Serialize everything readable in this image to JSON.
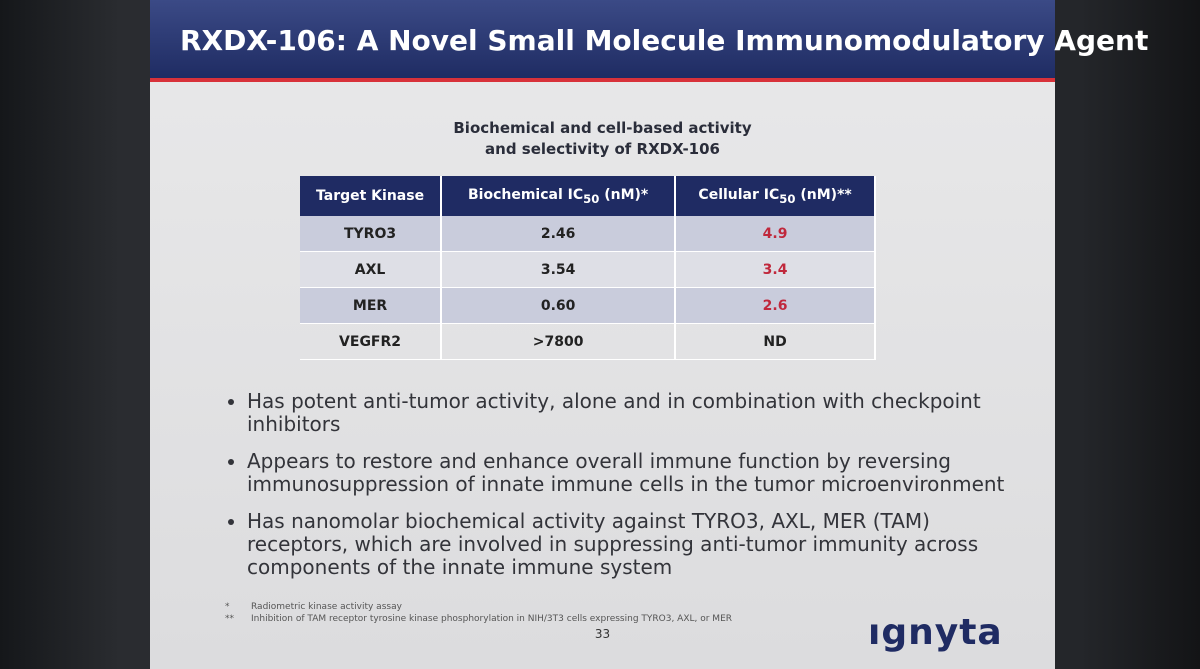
{
  "header": {
    "title": "RXDX-106: A Novel Small Molecule Immunomodulatory Agent"
  },
  "table": {
    "caption": [
      "Biochemical and cell-based activity",
      "and selectivity of RXDX-106"
    ],
    "columns": [
      {
        "text": "Target Kinase"
      },
      {
        "text": "Biochemical IC",
        "sub": "50",
        "suffix": " (nM)*"
      },
      {
        "text": "Cellular IC",
        "sub": "50",
        "suffix": " (nM)**"
      }
    ],
    "rows": [
      [
        "TYRO3",
        "2.46",
        "4.9"
      ],
      [
        "AXL",
        "3.54",
        "3.4"
      ],
      [
        "MER",
        "0.60",
        "2.6"
      ],
      [
        "VEGFR2",
        ">7800",
        "ND"
      ]
    ]
  },
  "bullets": [
    [
      "Has potent anti-tumor activity, alone and in combination with checkpoint",
      "inhibitors"
    ],
    [
      "Appears to restore and enhance overall immune function by reversing",
      "immunosuppression of innate immune cells in the tumor microenvironment"
    ],
    [
      "Has nanomolar biochemical activity against TYRO3, AXL, MER (TAM)",
      "receptors, which are involved in suppressing anti-tumor immunity across",
      "components of the innate immune system"
    ]
  ],
  "footnotes": [
    {
      "mark": "*",
      "text": "Radiometric kinase activity assay"
    },
    {
      "mark": "**",
      "text": "Inhibition of TAM receptor tyrosine kinase phosphorylation in NIH/3T3 cells expressing TYRO3, AXL, or MER"
    }
  ],
  "page_number": "33",
  "logo": "ıgnyta"
}
